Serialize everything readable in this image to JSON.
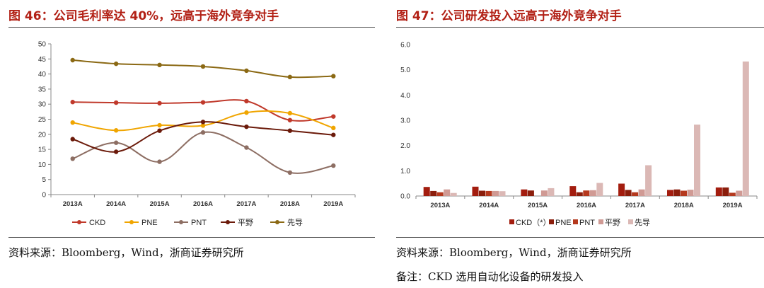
{
  "colors": {
    "title": "#b22015",
    "ckd": "#c0392b",
    "pne": "#f0a500",
    "pnt": "#8d6e63",
    "hirata": "#6b1a0a",
    "leadintelligent": "#8b6914",
    "bar_ckd": "#a31d0f",
    "bar_pne": "#8b1e0c",
    "bar_pnt": "#b5391e",
    "bar_hirata": "#d09a94",
    "bar_lead": "#dbb8b5"
  },
  "left": {
    "title": "图 46：公司毛利率达 40%，远高于海外竞争对手",
    "source": "资料来源：Bloomberg，Wind，浙商证券研究所"
  },
  "right": {
    "title": "图 47：公司研发投入远高于海外竞争对手",
    "source": "资料来源：Bloomberg，Wind，浙商证券研究所",
    "note": "备注：CKD 选用自动化设备的研发投入"
  },
  "chart_data": [
    {
      "type": "line",
      "title": "公司毛利率达 40%，远高于海外竞争对手",
      "xlabel": "",
      "ylabel": "",
      "categories": [
        "2013A",
        "2014A",
        "2015A",
        "2016A",
        "2017A",
        "2018A",
        "2019A"
      ],
      "ylim": [
        0,
        50
      ],
      "yticks": [
        "0",
        "5",
        "10",
        "15",
        "20",
        "25",
        "30",
        "35",
        "40",
        "45",
        "50"
      ],
      "grid": false,
      "legend_position": "bottom",
      "series": [
        {
          "name": "CKD",
          "color_key": "ckd",
          "values": [
            30.7,
            30.5,
            30.3,
            30.6,
            31.0,
            24.7,
            25.9
          ]
        },
        {
          "name": "PNE",
          "color_key": "pne",
          "values": [
            23.9,
            21.3,
            23.0,
            22.9,
            27.2,
            27.0,
            22.1
          ]
        },
        {
          "name": "PNT",
          "color_key": "pnt",
          "values": [
            11.9,
            17.2,
            10.9,
            20.6,
            15.6,
            7.3,
            9.6
          ]
        },
        {
          "name": "平野",
          "color_key": "hirata",
          "values": [
            18.4,
            14.2,
            21.2,
            24.1,
            22.5,
            21.2,
            19.8
          ]
        },
        {
          "name": "先导",
          "color_key": "leadintelligent",
          "values": [
            44.6,
            43.4,
            43.0,
            42.5,
            41.1,
            39.0,
            39.3
          ]
        }
      ]
    },
    {
      "type": "bar",
      "title": "公司研发投入远高于海外竞争对手",
      "xlabel": "",
      "ylabel": "",
      "categories": [
        "2013A",
        "2014A",
        "2015A",
        "2016A",
        "2017A",
        "2018A",
        "2019A"
      ],
      "ylim": [
        0,
        6.0
      ],
      "yticks": [
        "0.0",
        "1.0",
        "2.0",
        "3.0",
        "4.0",
        "5.0",
        "6.0"
      ],
      "grid": false,
      "legend_position": "bottom",
      "series": [
        {
          "name": "CKD（*）",
          "color_key": "bar_ckd",
          "values": [
            0.36,
            0.37,
            0.26,
            0.39,
            0.49,
            0.24,
            0.34
          ]
        },
        {
          "name": "PNE",
          "color_key": "bar_pne",
          "values": [
            0.2,
            0.21,
            0.22,
            0.15,
            0.24,
            0.26,
            0.34
          ]
        },
        {
          "name": "PNT",
          "color_key": "bar_pnt",
          "values": [
            0.15,
            0.2,
            0.0,
            0.22,
            0.15,
            0.21,
            0.13
          ]
        },
        {
          "name": "平野",
          "color_key": "bar_hirata",
          "values": [
            0.26,
            0.2,
            0.22,
            0.23,
            0.26,
            0.25,
            0.21
          ]
        },
        {
          "name": "先导",
          "color_key": "bar_lead",
          "values": [
            0.12,
            0.19,
            0.31,
            0.52,
            1.22,
            2.83,
            5.33
          ]
        }
      ]
    }
  ]
}
